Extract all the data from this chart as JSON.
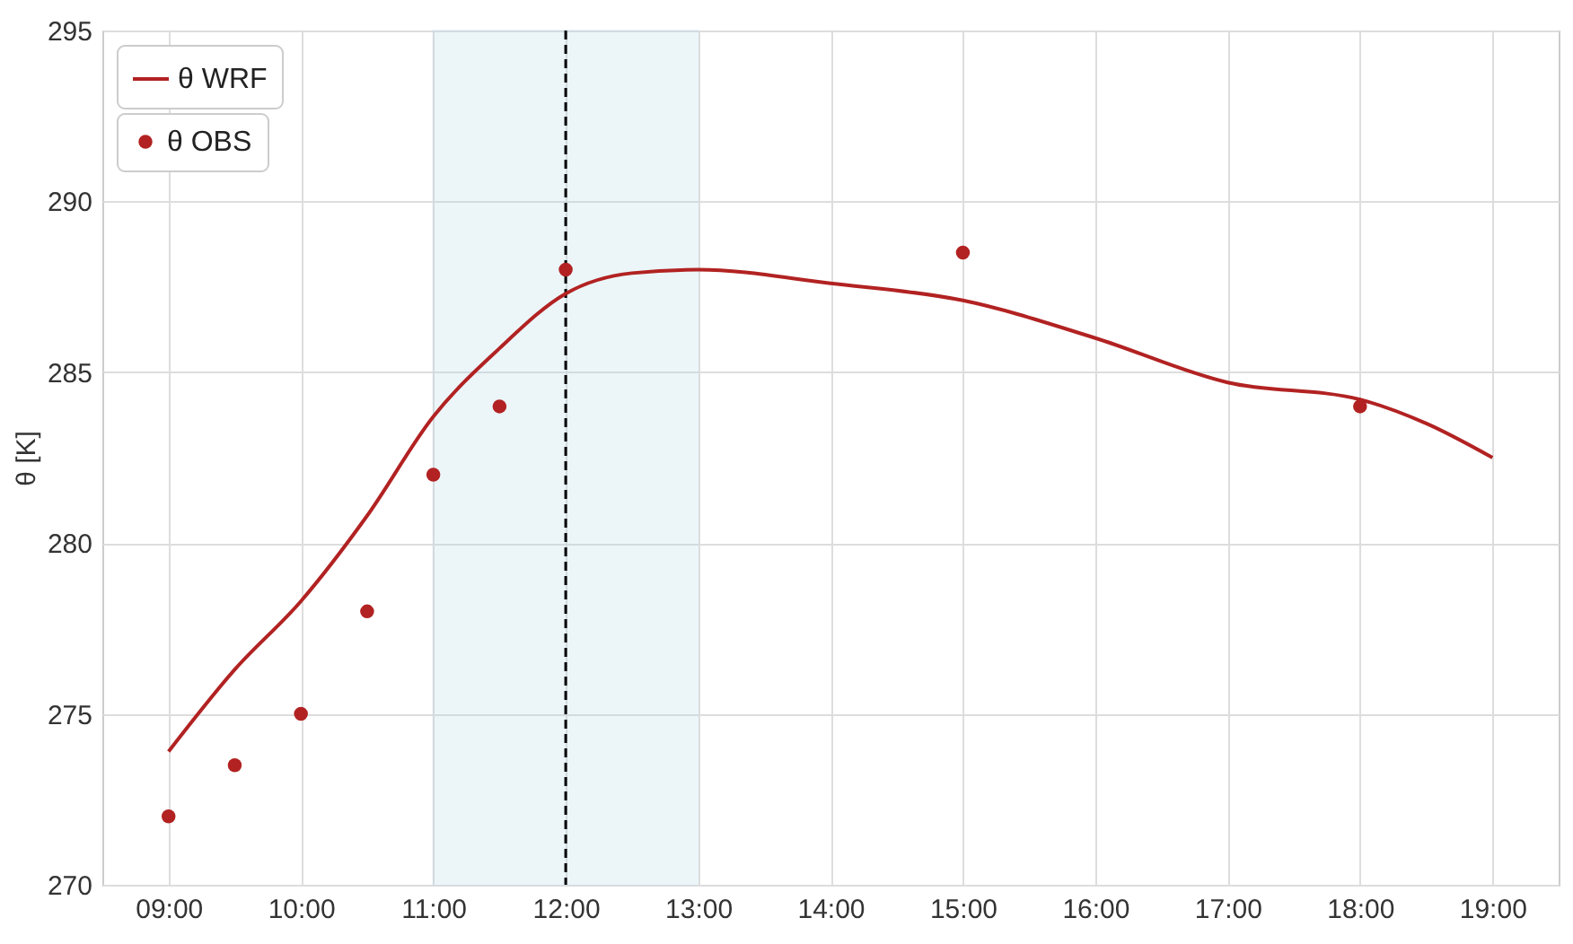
{
  "chart_data": {
    "type": "line",
    "ylabel": "θ [K]",
    "series": [
      {
        "name": "θ WRF",
        "color": "#b22222",
        "x": [
          9,
          9.5,
          10,
          10.5,
          11,
          11.5,
          12,
          12.5,
          13,
          14,
          15,
          16,
          17,
          18,
          18.5,
          19
        ],
        "values": [
          273.9,
          276.3,
          278.3,
          280.8,
          283.7,
          285.7,
          287.3,
          287.9,
          288.0,
          287.6,
          287.1,
          286.0,
          284.7,
          284.2,
          283.5,
          282.5
        ]
      },
      {
        "name": "θ OBS",
        "type": "scatter",
        "marker": "circle",
        "color": "#b22222",
        "x": [
          9,
          9.5,
          10,
          10.5,
          11,
          11.5,
          12,
          15,
          18
        ],
        "values": [
          272,
          273.5,
          275,
          278,
          282,
          284,
          288,
          288.5,
          284
        ]
      }
    ],
    "xlim": [
      8.5,
      19.5
    ],
    "xticks": [
      {
        "value": 9,
        "label": "09:00"
      },
      {
        "value": 10,
        "label": "10:00"
      },
      {
        "value": 11,
        "label": "11:00"
      },
      {
        "value": 12,
        "label": "12:00"
      },
      {
        "value": 13,
        "label": "13:00"
      },
      {
        "value": 14,
        "label": "14:00"
      },
      {
        "value": 15,
        "label": "15:00"
      },
      {
        "value": 16,
        "label": "16:00"
      },
      {
        "value": 17,
        "label": "17:00"
      },
      {
        "value": 18,
        "label": "18:00"
      },
      {
        "value": 19,
        "label": "19:00"
      }
    ],
    "ylim": [
      270,
      295
    ],
    "yticks": [
      270,
      275,
      280,
      285,
      290,
      295
    ],
    "ref_lines": [
      {
        "axis": "x",
        "value": 12,
        "color": "#000000",
        "line_style": "dashed"
      }
    ],
    "bands": [
      {
        "axis": "x",
        "from": 11,
        "to": 13,
        "color": "#add8e6"
      }
    ],
    "grid": true,
    "legend": "top left"
  }
}
